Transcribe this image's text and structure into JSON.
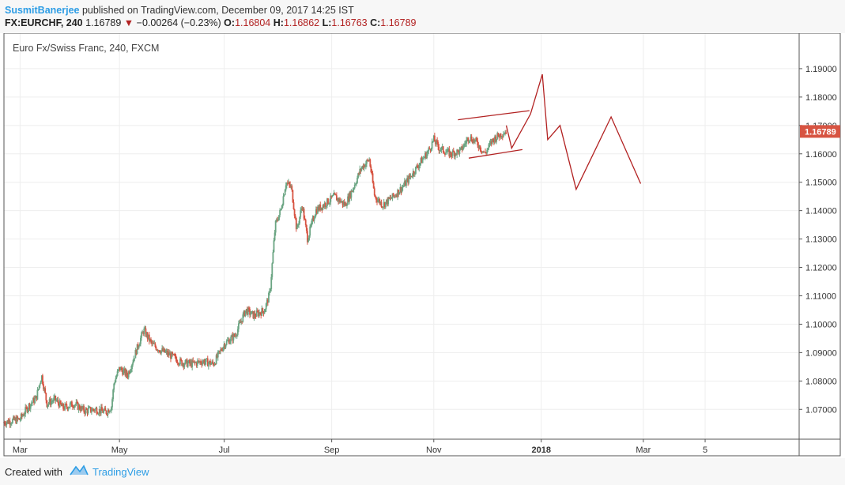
{
  "header": {
    "publisher": "SusmitBanerjee",
    "published_text": "published on TradingView.com, December 09, 2017 14:25 IST",
    "symbol": "FX:EURCHF, 240",
    "last": "1.16789",
    "change": "−0.00264 (−0.23%)",
    "o_label": "O:",
    "o_value": "1.16804",
    "h_label": "H:",
    "h_value": "1.16862",
    "l_label": "L:",
    "l_value": "1.16763",
    "c_label": "C:",
    "c_value": "1.16789"
  },
  "footer": {
    "created_with": "Created with",
    "brand": "TradingView"
  },
  "colors": {
    "up": "#6ba583",
    "down": "#d75442",
    "drawing": "#b22222",
    "price_label": "#d75442",
    "grid": "#eeeeee",
    "brand": "#2d9de5"
  },
  "chart_data": {
    "type": "line",
    "title": "Euro Fx/Swiss Franc, 240, FXCM",
    "ylim": [
      1.0595,
      1.2025
    ],
    "yticks": [
      1.07,
      1.08,
      1.09,
      1.1,
      1.11,
      1.12,
      1.13,
      1.14,
      1.15,
      1.16,
      1.17,
      1.18,
      1.19
    ],
    "ytick_labels": [
      "1.07000",
      "1.08000",
      "1.09000",
      "1.10000",
      "1.11000",
      "1.12000",
      "1.13000",
      "1.14000",
      "1.15000",
      "1.16000",
      "1.17000",
      "1.18000",
      "1.19000"
    ],
    "x_ticks": [
      {
        "label": "Mar",
        "t": 0.3
      },
      {
        "label": "May",
        "t": 2.15
      },
      {
        "label": "Jul",
        "t": 4.1
      },
      {
        "label": "Sep",
        "t": 6.1
      },
      {
        "label": "Nov",
        "t": 8.0
      },
      {
        "label": "2018",
        "t": 10.0
      },
      {
        "label": "Mar",
        "t": 11.9
      },
      {
        "label": "5",
        "t": 13.05
      }
    ],
    "x_range": [
      0,
      14.8
    ],
    "last_price": "1.16789",
    "last_price_value": 1.16789,
    "series": [
      {
        "kind": "price",
        "points": [
          [
            0.0,
            1.0655
          ],
          [
            0.3,
            1.0665
          ],
          [
            0.45,
            1.071
          ],
          [
            0.6,
            1.074
          ],
          [
            0.7,
            1.082
          ],
          [
            0.8,
            1.072
          ],
          [
            0.95,
            1.0735
          ],
          [
            1.1,
            1.0705
          ],
          [
            1.3,
            1.072
          ],
          [
            1.5,
            1.0695
          ],
          [
            1.7,
            1.07
          ],
          [
            1.9,
            1.069
          ],
          [
            2.0,
            1.071
          ],
          [
            2.05,
            1.0795
          ],
          [
            2.15,
            1.0845
          ],
          [
            2.3,
            1.082
          ],
          [
            2.45,
            1.09
          ],
          [
            2.6,
            1.098
          ],
          [
            2.75,
            1.093
          ],
          [
            2.9,
            1.091
          ],
          [
            3.1,
            1.089
          ],
          [
            3.3,
            1.0865
          ],
          [
            3.5,
            1.086
          ],
          [
            3.7,
            1.087
          ],
          [
            3.9,
            1.086
          ],
          [
            4.1,
            1.093
          ],
          [
            4.3,
            1.096
          ],
          [
            4.5,
            1.105
          ],
          [
            4.65,
            1.103
          ],
          [
            4.85,
            1.105
          ],
          [
            4.95,
            1.111
          ],
          [
            5.05,
            1.135
          ],
          [
            5.15,
            1.14
          ],
          [
            5.25,
            1.15
          ],
          [
            5.35,
            1.148
          ],
          [
            5.45,
            1.133
          ],
          [
            5.55,
            1.142
          ],
          [
            5.65,
            1.13
          ],
          [
            5.8,
            1.14
          ],
          [
            5.95,
            1.142
          ],
          [
            6.15,
            1.145
          ],
          [
            6.35,
            1.142
          ],
          [
            6.5,
            1.148
          ],
          [
            6.65,
            1.155
          ],
          [
            6.8,
            1.158
          ],
          [
            6.9,
            1.145
          ],
          [
            7.05,
            1.142
          ],
          [
            7.25,
            1.145
          ],
          [
            7.45,
            1.149
          ],
          [
            7.6,
            1.153
          ],
          [
            7.75,
            1.157
          ],
          [
            7.9,
            1.161
          ],
          [
            8.0,
            1.165
          ],
          [
            8.1,
            1.162
          ],
          [
            8.3,
            1.16
          ],
          [
            8.5,
            1.161
          ],
          [
            8.65,
            1.166
          ],
          [
            8.8,
            1.164
          ],
          [
            8.95,
            1.16
          ],
          [
            9.1,
            1.165
          ],
          [
            9.25,
            1.167
          ],
          [
            9.35,
            1.168
          ]
        ]
      },
      {
        "kind": "drawing",
        "name": "projection",
        "points": [
          [
            9.35,
            1.17
          ],
          [
            9.45,
            1.162
          ],
          [
            9.8,
            1.174
          ],
          [
            10.02,
            1.188
          ],
          [
            10.12,
            1.165
          ],
          [
            10.35,
            1.17
          ],
          [
            10.65,
            1.1475
          ],
          [
            11.3,
            1.173
          ],
          [
            11.85,
            1.1495
          ]
        ]
      },
      {
        "kind": "drawing",
        "name": "triangle-upper",
        "points": [
          [
            8.45,
            1.172
          ],
          [
            9.78,
            1.1752
          ]
        ]
      },
      {
        "kind": "drawing",
        "name": "triangle-lower",
        "points": [
          [
            8.65,
            1.1585
          ],
          [
            9.65,
            1.1615
          ]
        ]
      }
    ]
  }
}
